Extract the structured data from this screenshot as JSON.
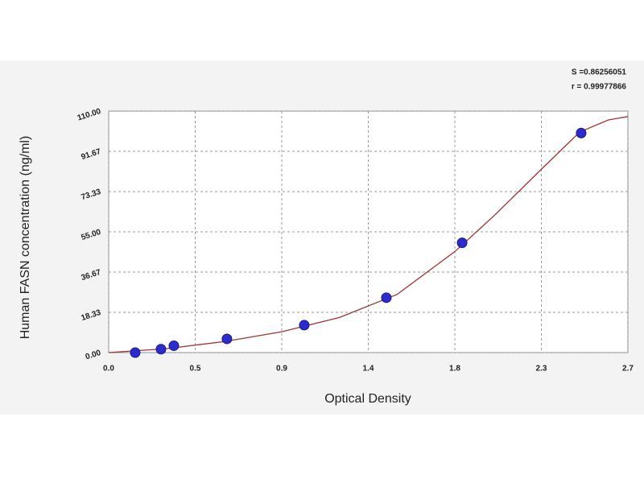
{
  "chart_data": {
    "type": "scatter",
    "annotations": [
      "S =0.86256051",
      "r = 0.99977866"
    ],
    "xlabel": "Optical Density",
    "ylabel": "Human  FASN concentration (ng/ml)",
    "xlim": [
      0,
      2.7
    ],
    "ylim": [
      0,
      110
    ],
    "xticks": [
      {
        "value": 0,
        "label": "0.0"
      },
      {
        "value": 0.45,
        "label": "0.5"
      },
      {
        "value": 0.9,
        "label": "0.9"
      },
      {
        "value": 1.35,
        "label": "1.4"
      },
      {
        "value": 1.8,
        "label": "1.8"
      },
      {
        "value": 2.25,
        "label": "2.3"
      },
      2.7
    ],
    "yticks": [
      {
        "value": 0,
        "label": "0.00"
      },
      18.33,
      36.67,
      {
        "value": 55,
        "label": "55.00"
      },
      73.33,
      91.67,
      {
        "value": 110,
        "label": "110.00"
      }
    ],
    "grid": true,
    "series": [
      {
        "type": "scatter",
        "color": "#2b2bd0",
        "x": [
          0.138,
          0.272,
          0.339,
          0.615,
          1.017,
          1.444,
          1.838,
          2.457
        ],
        "values": [
          0,
          1.56,
          3.13,
          6.25,
          12.5,
          25,
          50,
          100
        ]
      },
      {
        "type": "line",
        "color": "#a03434",
        "x": [
          0,
          0.3,
          0.6,
          0.9,
          1.2,
          1.5,
          1.8,
          2.0,
          2.25,
          2.45,
          2.6,
          2.7
        ],
        "values": [
          0,
          1.8,
          5,
          9.5,
          16,
          26.5,
          46,
          62,
          83.5,
          100.5,
          106,
          107.5
        ]
      }
    ]
  }
}
